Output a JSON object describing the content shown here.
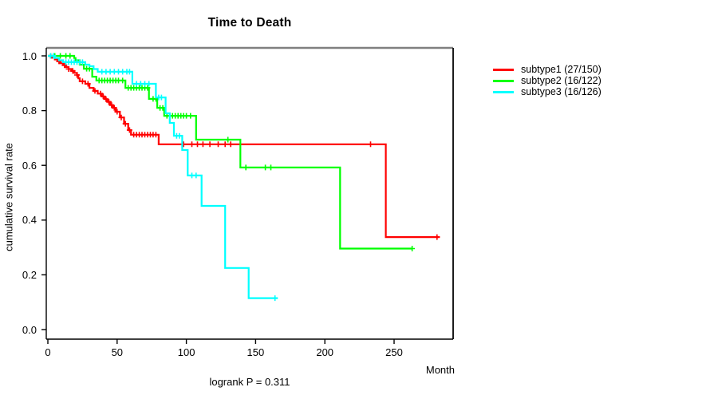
{
  "title": "Time to Death",
  "footnote": "logrank P = 0.311",
  "axes": {
    "xlabel": "Month",
    "ylabel": "cumulative survival rate",
    "x_tick_labels": [
      "0",
      "50",
      "100",
      "150",
      "200",
      "250"
    ],
    "x_tick_values": [
      0,
      50,
      100,
      150,
      200,
      250
    ],
    "y_tick_labels": [
      "1.0",
      "0.8",
      "0.6",
      "0.4",
      "0.2",
      "0.0"
    ],
    "y_tick_values": [
      1.0,
      0.8,
      0.6,
      0.4,
      0.2,
      0.0
    ]
  },
  "chart_data": {
    "type": "line",
    "subtype": "kaplan-meier-step",
    "title": "Time to Death",
    "xlabel": "Month",
    "ylabel": "cumulative survival rate",
    "xlim": [
      0,
      292
    ],
    "ylim": [
      0,
      1.04
    ],
    "grid": false,
    "legend_position": "right",
    "annotation": "logrank P = 0.311",
    "series": [
      {
        "name": "subtype1 (27/150)",
        "color": "#ff0000",
        "steps": [
          [
            0,
            1.0
          ],
          [
            3,
            0.993
          ],
          [
            5,
            0.987
          ],
          [
            7,
            0.98
          ],
          [
            9,
            0.973
          ],
          [
            11,
            0.966
          ],
          [
            13,
            0.959
          ],
          [
            15,
            0.952
          ],
          [
            17,
            0.945
          ],
          [
            19,
            0.938
          ],
          [
            21,
            0.93
          ],
          [
            22,
            0.918
          ],
          [
            23,
            0.907
          ],
          [
            27,
            0.898
          ],
          [
            30,
            0.883
          ],
          [
            33,
            0.872
          ],
          [
            36,
            0.862
          ],
          [
            39,
            0.852
          ],
          [
            41,
            0.842
          ],
          [
            43,
            0.832
          ],
          [
            45,
            0.82
          ],
          [
            47,
            0.81
          ],
          [
            49,
            0.796
          ],
          [
            52,
            0.775
          ],
          [
            55,
            0.752
          ],
          [
            58,
            0.729
          ],
          [
            60,
            0.712
          ],
          [
            80,
            0.677
          ],
          [
            244,
            0.338
          ]
        ],
        "end_time": 283,
        "censor_times": [
          2,
          8,
          12,
          15,
          18,
          21,
          25,
          29,
          34,
          38,
          40,
          42,
          44,
          46,
          48,
          50,
          53,
          56,
          59,
          62,
          64,
          66,
          68,
          70,
          72,
          74,
          76,
          78,
          98,
          104,
          108,
          112,
          117,
          123,
          128,
          132,
          233,
          281
        ]
      },
      {
        "name": "subtype2 (16/122)",
        "color": "#00ff00",
        "steps": [
          [
            0,
            1.0
          ],
          [
            19,
            0.992
          ],
          [
            20,
            0.984
          ],
          [
            23,
            0.968
          ],
          [
            26,
            0.953
          ],
          [
            32,
            0.924
          ],
          [
            35,
            0.91
          ],
          [
            56,
            0.883
          ],
          [
            73,
            0.843
          ],
          [
            79,
            0.81
          ],
          [
            84,
            0.781
          ],
          [
            107,
            0.694
          ],
          [
            139,
            0.592
          ],
          [
            211,
            0.296
          ]
        ],
        "end_time": 263,
        "censor_times": [
          5,
          9,
          13,
          16,
          28,
          30,
          37,
          39,
          41,
          43,
          45,
          47,
          49,
          51,
          54,
          58,
          60,
          62,
          64,
          66,
          68,
          70,
          72,
          76,
          78,
          81,
          83,
          86,
          88,
          90,
          92,
          94,
          96,
          98,
          100,
          103,
          130,
          143,
          157,
          161,
          263
        ]
      },
      {
        "name": "subtype3 (16/126)",
        "color": "#00ffff",
        "steps": [
          [
            0,
            1.0
          ],
          [
            5,
            0.992
          ],
          [
            8,
            0.984
          ],
          [
            11,
            0.977
          ],
          [
            27,
            0.968
          ],
          [
            30,
            0.962
          ],
          [
            33,
            0.952
          ],
          [
            36,
            0.942
          ],
          [
            61,
            0.898
          ],
          [
            78,
            0.848
          ],
          [
            85,
            0.79
          ],
          [
            88,
            0.755
          ],
          [
            91,
            0.708
          ],
          [
            97,
            0.656
          ],
          [
            101,
            0.563
          ],
          [
            111,
            0.452
          ],
          [
            128,
            0.225
          ],
          [
            145,
            0.115
          ]
        ],
        "end_time": 166,
        "censor_times": [
          2,
          4,
          13,
          15,
          17,
          19,
          21,
          23,
          25,
          39,
          42,
          45,
          48,
          51,
          54,
          57,
          59,
          64,
          67,
          70,
          73,
          80,
          82,
          93,
          95,
          104,
          107,
          164
        ]
      }
    ]
  }
}
